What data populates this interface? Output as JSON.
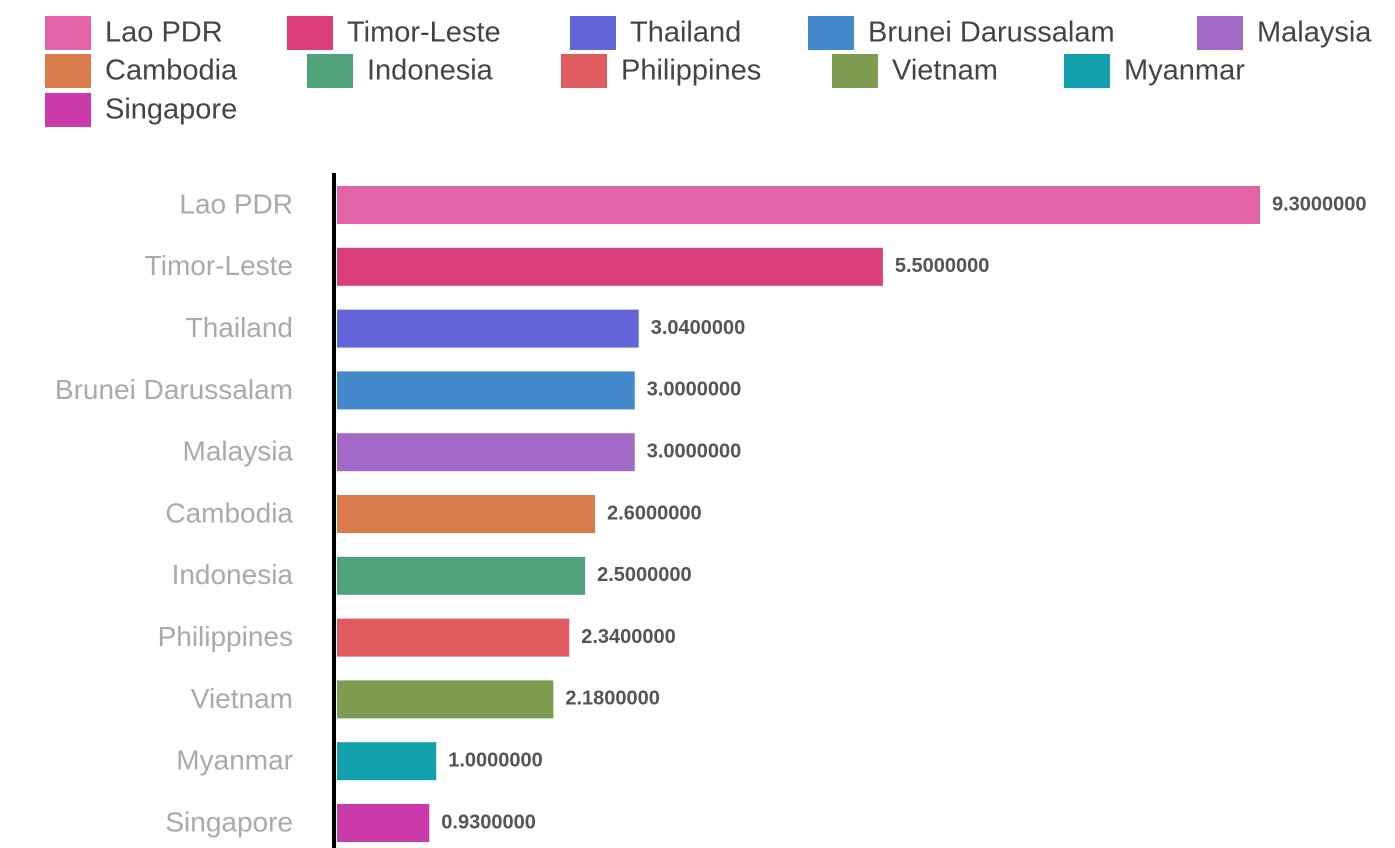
{
  "chart_data": {
    "type": "bar",
    "orientation": "horizontal",
    "categories": [
      "Lao PDR",
      "Timor-Leste",
      "Thailand",
      "Brunei Darussalam",
      "Malaysia",
      "Cambodia",
      "Indonesia",
      "Philippines",
      "Vietnam",
      "Myanmar",
      "Singapore"
    ],
    "values": [
      9.3,
      5.5,
      3.04,
      3.0,
      3.0,
      2.6,
      2.5,
      2.34,
      2.18,
      1.0,
      0.93
    ],
    "value_labels": [
      "9.3000000",
      "5.5000000",
      "3.0400000",
      "3.0000000",
      "3.0000000",
      "2.6000000",
      "2.5000000",
      "2.3400000",
      "2.1800000",
      "1.0000000",
      "0.9300000"
    ],
    "colors": [
      "#e264a6",
      "#dc3e7a",
      "#6366db",
      "#4489cb",
      "#a36ac8",
      "#d97b4b",
      "#4fa27a",
      "#e05b60",
      "#7d9c50",
      "#12a0ad",
      "#c93aab"
    ],
    "legend": "top"
  }
}
